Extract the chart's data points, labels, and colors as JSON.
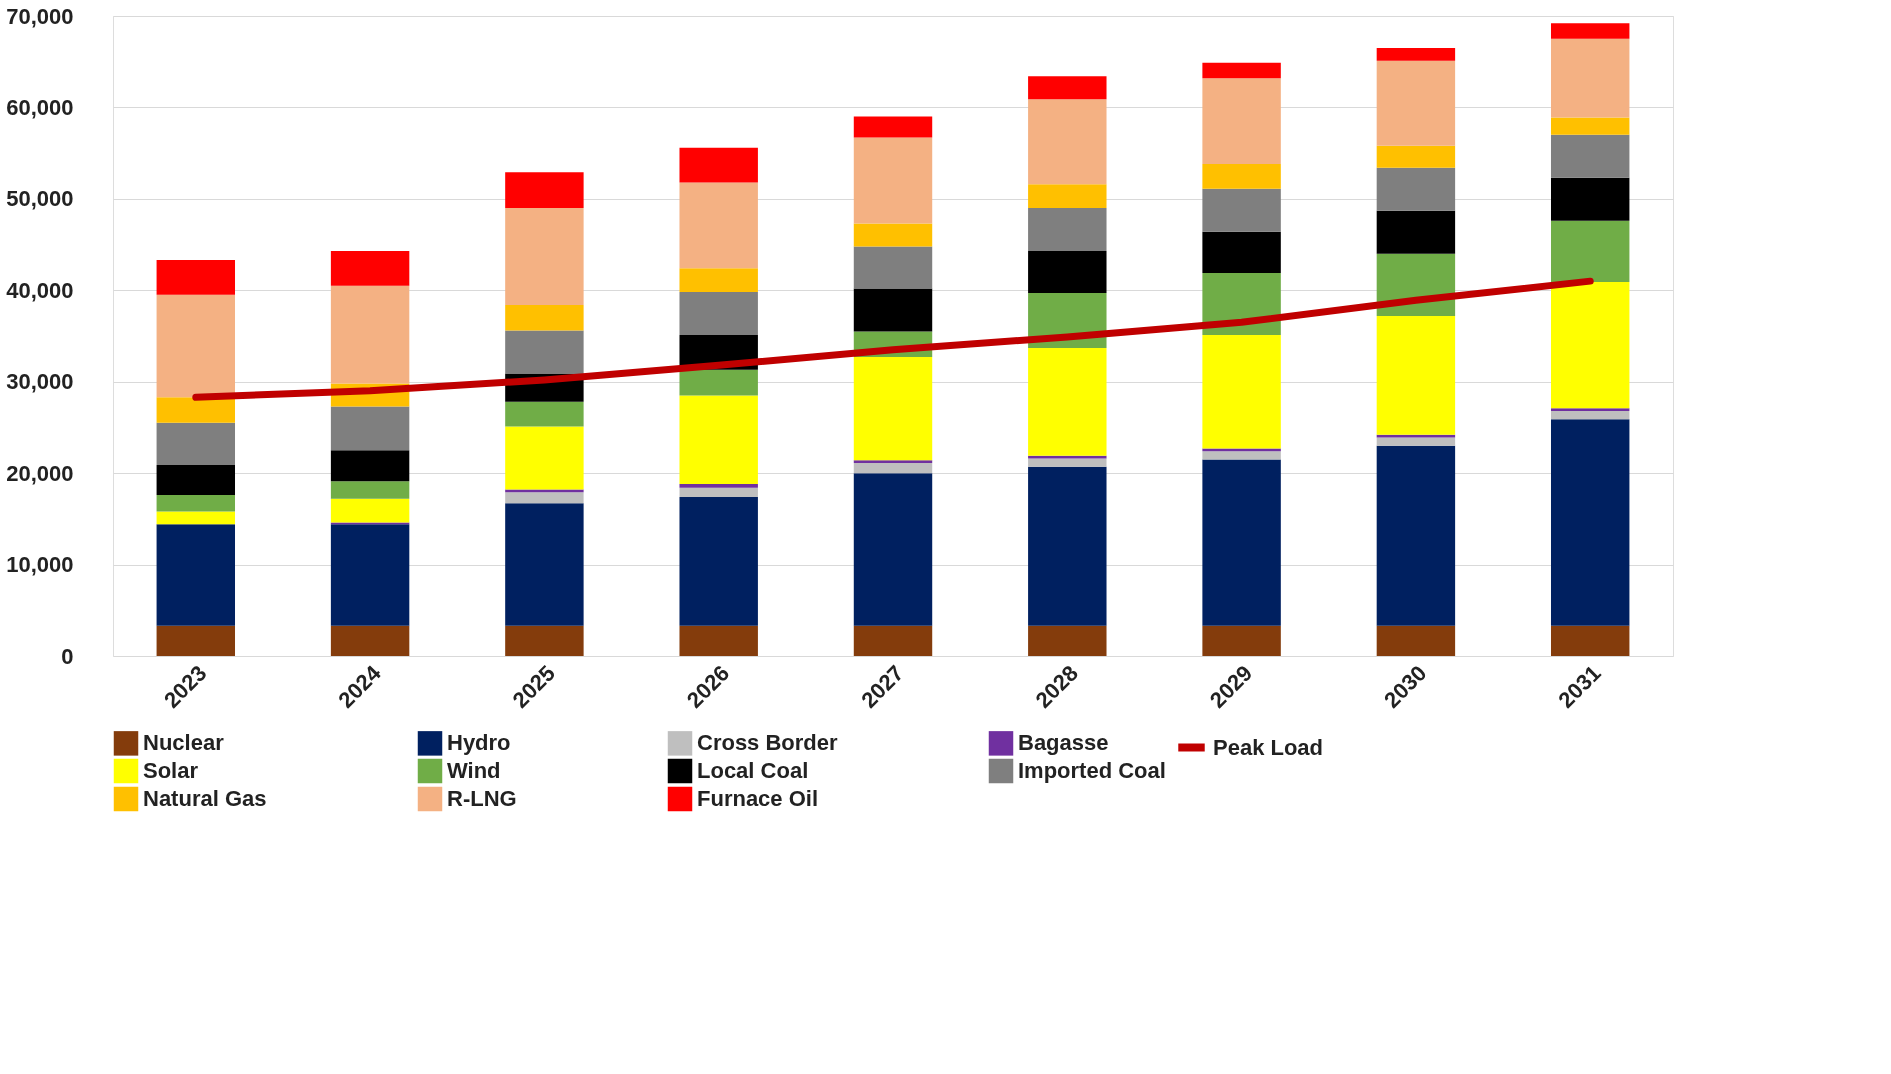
{
  "chart_data": {
    "type": "bar",
    "stacked": true,
    "grid": "y",
    "legend": "bottom",
    "categories": [
      "2023",
      "2024",
      "2025",
      "2026",
      "2027",
      "2028",
      "2029",
      "2030",
      "2031"
    ],
    "ylim": [
      0,
      70000
    ],
    "yticks": [
      {
        "value": 0,
        "label": "0"
      },
      {
        "value": 10000,
        "label": "10,000"
      },
      {
        "value": 20000,
        "label": "20,000"
      },
      {
        "value": 30000,
        "label": "30,000"
      },
      {
        "value": 40000,
        "label": "40,000"
      },
      {
        "value": 50000,
        "label": "50,000"
      },
      {
        "value": 60000,
        "label": "60,000"
      },
      {
        "value": 70000,
        "label": "70,000"
      }
    ],
    "series": [
      {
        "name": "Nuclear",
        "color": "#843c0c",
        "values": [
          3300,
          3300,
          3300,
          3300,
          3300,
          3300,
          3300,
          3300,
          3300
        ]
      },
      {
        "name": "Hydro",
        "color": "#002060",
        "values": [
          11100,
          11100,
          13400,
          14100,
          16700,
          17400,
          18200,
          19700,
          22600
        ]
      },
      {
        "name": "Cross Border",
        "color": "#bfbfbf",
        "values": [
          0,
          0,
          1200,
          1000,
          1100,
          900,
          900,
          900,
          900
        ]
      },
      {
        "name": "Bagasse",
        "color": "#7030a0",
        "values": [
          0,
          200,
          300,
          400,
          300,
          300,
          300,
          300,
          300
        ]
      },
      {
        "name": "Solar",
        "color": "#ffff00",
        "values": [
          1400,
          2600,
          6900,
          9700,
          11300,
          11800,
          12400,
          13000,
          13800
        ]
      },
      {
        "name": "Wind",
        "color": "#70ad47",
        "values": [
          1800,
          1900,
          2700,
          2800,
          2800,
          6000,
          6800,
          6800,
          6700
        ]
      },
      {
        "name": "Local Coal",
        "color": "#000000",
        "values": [
          3300,
          3400,
          3100,
          3800,
          4700,
          4600,
          4500,
          4700,
          4700
        ]
      },
      {
        "name": "Imported Coal",
        "color": "#7f7f7f",
        "values": [
          4600,
          4800,
          4700,
          4700,
          4600,
          4700,
          4700,
          4700,
          4700
        ]
      },
      {
        "name": "Natural Gas",
        "color": "#ffc000",
        "values": [
          2800,
          2500,
          2800,
          2600,
          2500,
          2600,
          2700,
          2400,
          1900
        ]
      },
      {
        "name": "R-LNG",
        "color": "#f4b183",
        "values": [
          11200,
          10700,
          10600,
          9400,
          9400,
          9300,
          9400,
          9300,
          8600
        ]
      },
      {
        "name": "Furnace Oil",
        "color": "#ff0000",
        "values": [
          3800,
          3800,
          3900,
          3800,
          2300,
          2500,
          1700,
          1400,
          1700
        ]
      },
      {
        "name": "Peak Load",
        "type": "line",
        "color": "#c00000",
        "values": [
          28300,
          29000,
          30200,
          31800,
          33500,
          34900,
          36500,
          38900,
          41000
        ]
      }
    ]
  }
}
